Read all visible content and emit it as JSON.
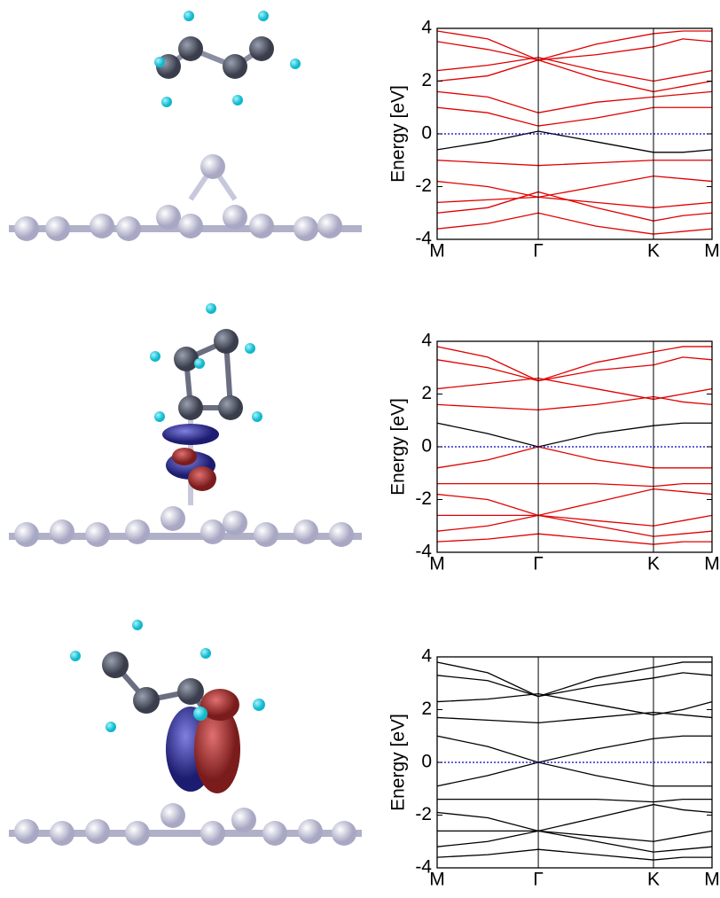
{
  "chart_data": [
    {
      "type": "line",
      "ylabel": "Energy [eV]",
      "ylim": [
        -4,
        4
      ],
      "yticks": [
        -4,
        -2,
        0,
        2,
        4
      ],
      "xlim": [
        0,
        1
      ],
      "xticks": [
        {
          "value": 0,
          "label": "M"
        },
        {
          "value": 0.368,
          "label": "Γ"
        },
        {
          "value": 0.787,
          "label": "K"
        },
        {
          "value": 1,
          "label": "M"
        }
      ],
      "x_grid": true,
      "fermi_level": 0,
      "fermi_color": "#0000cc",
      "x": [
        0,
        0.184,
        0.368,
        0.578,
        0.787,
        0.894,
        1
      ],
      "series": [
        {
          "color": "#e00000",
          "values": [
            3.9,
            3.6,
            2.8,
            3.4,
            3.8,
            3.9,
            3.9
          ]
        },
        {
          "color": "#e00000",
          "values": [
            3.5,
            3.2,
            2.8,
            3.0,
            3.3,
            3.6,
            3.5
          ]
        },
        {
          "color": "#e00000",
          "values": [
            2.4,
            2.6,
            2.9,
            2.4,
            2.0,
            2.2,
            2.4
          ]
        },
        {
          "color": "#e00000",
          "values": [
            2.0,
            2.2,
            2.8,
            2.1,
            1.6,
            1.8,
            2.0
          ]
        },
        {
          "color": "#e00000",
          "values": [
            1.6,
            1.4,
            0.8,
            1.2,
            1.4,
            1.5,
            1.6
          ]
        },
        {
          "color": "#e00000",
          "values": [
            1.0,
            0.8,
            0.3,
            0.6,
            1.0,
            1.0,
            1.0
          ]
        },
        {
          "color": "#000000",
          "values": [
            -0.6,
            -0.3,
            0.1,
            -0.3,
            -0.7,
            -0.7,
            -0.6
          ]
        },
        {
          "color": "#e00000",
          "values": [
            -1.0,
            -1.1,
            -1.2,
            -1.1,
            -1.0,
            -1.0,
            -1.0
          ]
        },
        {
          "color": "#e00000",
          "values": [
            -1.8,
            -2.0,
            -2.4,
            -2.0,
            -1.6,
            -1.7,
            -1.8
          ]
        },
        {
          "color": "#e00000",
          "values": [
            -2.6,
            -2.5,
            -2.4,
            -2.6,
            -2.8,
            -2.7,
            -2.6
          ]
        },
        {
          "color": "#e00000",
          "values": [
            -3.0,
            -2.8,
            -2.2,
            -2.8,
            -3.3,
            -3.1,
            -3.0
          ]
        },
        {
          "color": "#e00000",
          "values": [
            -3.6,
            -3.4,
            -3.0,
            -3.5,
            -3.8,
            -3.7,
            -3.6
          ]
        }
      ]
    },
    {
      "type": "line",
      "ylabel": "Energy [eV]",
      "ylim": [
        -4,
        4
      ],
      "yticks": [
        -4,
        -2,
        0,
        2,
        4
      ],
      "xlim": [
        0,
        1
      ],
      "xticks": [
        {
          "value": 0,
          "label": "M"
        },
        {
          "value": 0.368,
          "label": "Γ"
        },
        {
          "value": 0.787,
          "label": "K"
        },
        {
          "value": 1,
          "label": "M"
        }
      ],
      "x_grid": true,
      "fermi_level": 0,
      "fermi_color": "#0000cc",
      "x": [
        0,
        0.184,
        0.368,
        0.578,
        0.787,
        0.894,
        1
      ],
      "series": [
        {
          "color": "#e00000",
          "values": [
            3.8,
            3.4,
            2.5,
            3.2,
            3.6,
            3.8,
            3.8
          ]
        },
        {
          "color": "#e00000",
          "values": [
            3.3,
            3.0,
            2.5,
            2.9,
            3.1,
            3.4,
            3.3
          ]
        },
        {
          "color": "#e00000",
          "values": [
            2.2,
            2.4,
            2.6,
            2.2,
            1.8,
            2.0,
            2.2
          ]
        },
        {
          "color": "#e00000",
          "values": [
            1.6,
            1.5,
            1.4,
            1.6,
            1.9,
            1.7,
            1.6
          ]
        },
        {
          "color": "#000000",
          "values": [
            0.9,
            0.5,
            0.0,
            0.5,
            0.8,
            0.9,
            0.9
          ]
        },
        {
          "color": "#e00000",
          "values": [
            -0.8,
            -0.5,
            0.0,
            -0.5,
            -0.8,
            -0.8,
            -0.8
          ]
        },
        {
          "color": "#e00000",
          "values": [
            -1.4,
            -1.4,
            -1.4,
            -1.4,
            -1.5,
            -1.4,
            -1.4
          ]
        },
        {
          "color": "#e00000",
          "values": [
            -1.8,
            -2.0,
            -2.6,
            -2.1,
            -1.6,
            -1.7,
            -1.8
          ]
        },
        {
          "color": "#e00000",
          "values": [
            -2.6,
            -2.6,
            -2.6,
            -2.8,
            -3.0,
            -2.8,
            -2.6
          ]
        },
        {
          "color": "#e00000",
          "values": [
            -3.2,
            -3.0,
            -2.6,
            -3.0,
            -3.4,
            -3.3,
            -3.2
          ]
        },
        {
          "color": "#e00000",
          "values": [
            -3.6,
            -3.5,
            -3.3,
            -3.5,
            -3.7,
            -3.6,
            -3.6
          ]
        }
      ]
    },
    {
      "type": "line",
      "ylabel": "Energy [eV]",
      "ylim": [
        -4,
        4
      ],
      "yticks": [
        -4,
        -2,
        0,
        2,
        4
      ],
      "xlim": [
        0,
        1
      ],
      "xticks": [
        {
          "value": 0,
          "label": "M"
        },
        {
          "value": 0.368,
          "label": "Γ"
        },
        {
          "value": 0.787,
          "label": "K"
        },
        {
          "value": 1,
          "label": "M"
        }
      ],
      "x_grid": true,
      "fermi_level": 0,
      "fermi_color": "#0000cc",
      "x": [
        0,
        0.184,
        0.368,
        0.578,
        0.787,
        0.894,
        1
      ],
      "series": [
        {
          "color": "#000000",
          "values": [
            3.8,
            3.4,
            2.5,
            3.2,
            3.6,
            3.8,
            3.8
          ]
        },
        {
          "color": "#000000",
          "values": [
            3.3,
            3.1,
            2.5,
            2.9,
            3.2,
            3.4,
            3.3
          ]
        },
        {
          "color": "#000000",
          "values": [
            2.3,
            2.4,
            2.6,
            2.2,
            1.8,
            2.0,
            2.3
          ]
        },
        {
          "color": "#000000",
          "values": [
            1.7,
            1.6,
            1.5,
            1.7,
            1.9,
            1.8,
            1.7
          ]
        },
        {
          "color": "#000000",
          "values": [
            1.0,
            0.6,
            0.0,
            0.5,
            0.9,
            1.0,
            1.0
          ]
        },
        {
          "color": "#000000",
          "values": [
            -0.9,
            -0.5,
            0.0,
            -0.5,
            -0.9,
            -0.9,
            -0.9
          ]
        },
        {
          "color": "#000000",
          "values": [
            -1.4,
            -1.4,
            -1.4,
            -1.4,
            -1.5,
            -1.4,
            -1.4
          ]
        },
        {
          "color": "#000000",
          "values": [
            -1.9,
            -2.1,
            -2.6,
            -2.1,
            -1.6,
            -1.8,
            -1.9
          ]
        },
        {
          "color": "#000000",
          "values": [
            -2.6,
            -2.6,
            -2.6,
            -2.8,
            -3.0,
            -2.8,
            -2.6
          ]
        },
        {
          "color": "#000000",
          "values": [
            -3.2,
            -3.0,
            -2.6,
            -3.0,
            -3.4,
            -3.3,
            -3.2
          ]
        },
        {
          "color": "#000000",
          "values": [
            -3.6,
            -3.5,
            -3.3,
            -3.5,
            -3.7,
            -3.6,
            -3.6
          ]
        }
      ]
    }
  ]
}
